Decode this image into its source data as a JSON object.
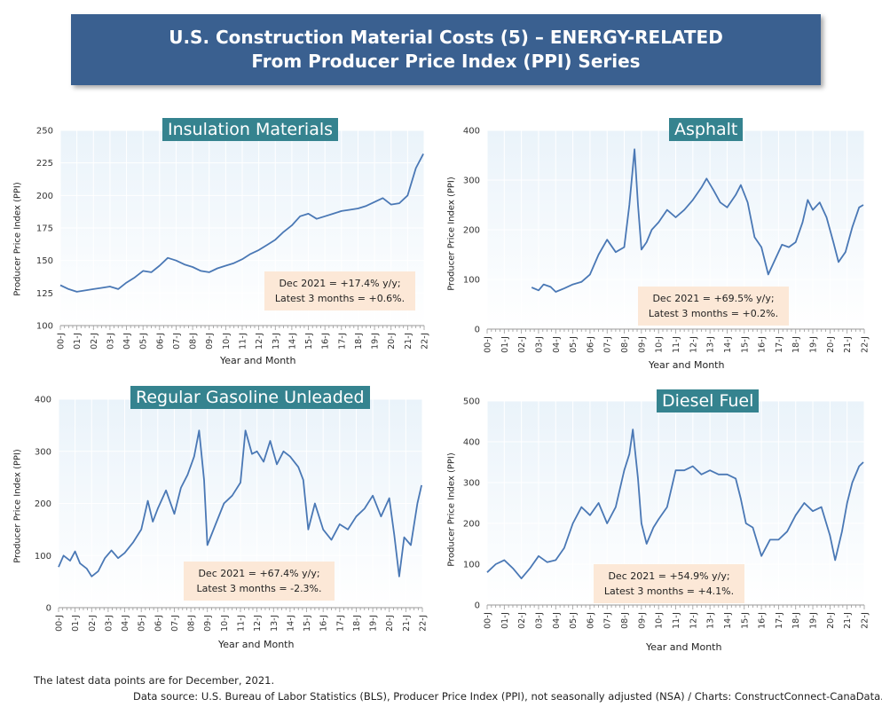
{
  "header": {
    "title_line1": "U.S. Construction Material Costs (5) – ENERGY-RELATED",
    "title_line2": "From Producer Price Index (PPI) Series"
  },
  "footer": {
    "note": "The latest data points are for December, 2021.",
    "source": "Data source: U.S. Bureau of Labor Statistics (BLS), Producer Price Index (PPI), not seasonally adjusted (NSA) / Charts: ConstructConnect-CanaData."
  },
  "colors": {
    "line": "#4a78b5",
    "plot_bg": "#eaf3fa",
    "title_bg": "#35838f",
    "header_bg": "#3a6090",
    "annotation_bg": "#fce8d7"
  },
  "chart_data": [
    {
      "type": "line",
      "title": "Insulation Materials",
      "ylabel": "Producer Price Index (PPI)",
      "xlabel": "Year and Month",
      "ylim": [
        100,
        250
      ],
      "yticks": [
        100,
        125,
        150,
        175,
        200,
        225,
        250
      ],
      "xticks": [
        "00-J",
        "01-J",
        "02-J",
        "03-J",
        "04-J",
        "05-J",
        "06-J",
        "07-J",
        "08-J",
        "09-J",
        "10-J",
        "11-J",
        "12-J",
        "13-J",
        "14-J",
        "15-J",
        "16-J",
        "17-J",
        "18-J",
        "19-J",
        "20-J",
        "21-J",
        "22-J"
      ],
      "annotation": [
        "Dec 2021 = +17.4% y/y;",
        "Latest 3 months = +0.6%."
      ],
      "series": [
        {
          "x": [
            2000.0,
            2000.5,
            2001.0,
            2001.5,
            2002.0,
            2002.5,
            2003.0,
            2003.5,
            2004.0,
            2004.5,
            2005.0,
            2005.5,
            2006.0,
            2006.5,
            2007.0,
            2007.5,
            2008.0,
            2008.5,
            2009.0,
            2009.5,
            2010.0,
            2010.5,
            2011.0,
            2011.5,
            2012.0,
            2012.5,
            2013.0,
            2013.5,
            2014.0,
            2014.5,
            2015.0,
            2015.5,
            2016.0,
            2016.5,
            2017.0,
            2017.5,
            2018.0,
            2018.5,
            2019.0,
            2019.5,
            2020.0,
            2020.5,
            2021.0,
            2021.5,
            2021.95
          ],
          "y": [
            131,
            128,
            126,
            127,
            128,
            129,
            130,
            128,
            133,
            137,
            142,
            141,
            146,
            152,
            150,
            147,
            145,
            142,
            141,
            144,
            146,
            148,
            151,
            155,
            158,
            162,
            166,
            172,
            177,
            184,
            186,
            182,
            184,
            186,
            188,
            189,
            190,
            192,
            195,
            198,
            193,
            194,
            200,
            221,
            232
          ]
        }
      ]
    },
    {
      "type": "line",
      "title": "Asphalt",
      "ylabel": "Producer Price Index (PPI)",
      "xlabel": "Year and Month",
      "ylim": [
        0,
        400
      ],
      "yticks": [
        0,
        100,
        200,
        300,
        400
      ],
      "xticks": [
        "00-J",
        "01-J",
        "02-J",
        "03-J",
        "04-J",
        "05-J",
        "06-J",
        "07-J",
        "08-J",
        "09-J",
        "10-J",
        "11-J",
        "12-J",
        "13-J",
        "14-J",
        "15-J",
        "16-J",
        "17-J",
        "18-J",
        "19-J",
        "20-J",
        "21-J",
        "22-J"
      ],
      "annotation": [
        "Dec 2021 = +69.5% y/y;",
        "Latest 3 months = +0.2%."
      ],
      "series": [
        {
          "x": [
            2002.6,
            2003.0,
            2003.3,
            2003.7,
            2004.0,
            2004.5,
            2005.0,
            2005.5,
            2006.0,
            2006.5,
            2007.0,
            2007.5,
            2008.0,
            2008.3,
            2008.6,
            2008.8,
            2009.0,
            2009.3,
            2009.6,
            2010.0,
            2010.5,
            2011.0,
            2011.5,
            2012.0,
            2012.5,
            2012.8,
            2013.2,
            2013.6,
            2014.0,
            2014.5,
            2014.8,
            2015.2,
            2015.6,
            2016.0,
            2016.4,
            2016.8,
            2017.2,
            2017.6,
            2018.0,
            2018.4,
            2018.7,
            2019.0,
            2019.4,
            2019.8,
            2020.2,
            2020.5,
            2020.9,
            2021.3,
            2021.7,
            2021.95
          ],
          "y": [
            84,
            78,
            90,
            85,
            75,
            82,
            90,
            95,
            110,
            150,
            180,
            155,
            165,
            250,
            362,
            250,
            160,
            175,
            200,
            215,
            240,
            225,
            240,
            260,
            285,
            303,
            280,
            255,
            245,
            270,
            290,
            255,
            185,
            165,
            110,
            140,
            170,
            165,
            175,
            215,
            260,
            240,
            255,
            225,
            175,
            135,
            155,
            205,
            245,
            250
          ]
        }
      ]
    },
    {
      "type": "line",
      "title": "Regular Gasoline Unleaded",
      "ylabel": "Producer Price Index (PPI)",
      "xlabel": "Year and Month",
      "ylim": [
        0,
        400
      ],
      "yticks": [
        0,
        100,
        200,
        300,
        400
      ],
      "xticks": [
        "00-J",
        "01-J",
        "02-J",
        "03-J",
        "04-J",
        "05-J",
        "06-J",
        "07-J",
        "08-J",
        "09-J",
        "10-J",
        "11-J",
        "12-J",
        "13-J",
        "14-J",
        "15-J",
        "16-J",
        "17-J",
        "18-J",
        "19-J",
        "20-J",
        "21-J",
        "22-J"
      ],
      "annotation": [
        "Dec 2021 = +67.4% y/y;",
        "Latest 3 months = -2.3%."
      ],
      "series": [
        {
          "x": [
            2000.0,
            2000.3,
            2000.7,
            2001.0,
            2001.3,
            2001.7,
            2002.0,
            2002.4,
            2002.8,
            2003.2,
            2003.6,
            2004.0,
            2004.5,
            2005.0,
            2005.4,
            2005.7,
            2006.0,
            2006.5,
            2007.0,
            2007.4,
            2007.8,
            2008.2,
            2008.5,
            2008.8,
            2009.0,
            2009.5,
            2010.0,
            2010.5,
            2011.0,
            2011.3,
            2011.7,
            2012.0,
            2012.4,
            2012.8,
            2013.2,
            2013.6,
            2014.0,
            2014.5,
            2014.8,
            2015.1,
            2015.5,
            2016.0,
            2016.5,
            2017.0,
            2017.5,
            2018.0,
            2018.5,
            2019.0,
            2019.5,
            2020.0,
            2020.3,
            2020.6,
            2020.9,
            2021.3,
            2021.7,
            2021.95
          ],
          "y": [
            78,
            100,
            90,
            108,
            85,
            75,
            60,
            70,
            95,
            110,
            95,
            105,
            125,
            150,
            205,
            165,
            190,
            225,
            180,
            230,
            255,
            290,
            340,
            245,
            120,
            160,
            200,
            215,
            240,
            340,
            295,
            300,
            280,
            320,
            275,
            300,
            290,
            270,
            245,
            150,
            200,
            150,
            130,
            160,
            150,
            175,
            190,
            215,
            175,
            210,
            140,
            60,
            135,
            120,
            200,
            235
          ]
        }
      ]
    },
    {
      "type": "line",
      "title": "Diesel Fuel",
      "ylabel": "Producer Price Index (PPI)",
      "xlabel": "Year and Month",
      "ylim": [
        0,
        500
      ],
      "yticks": [
        0,
        100,
        200,
        300,
        400,
        500
      ],
      "xticks": [
        "00-J",
        "01-J",
        "02-J",
        "03-J",
        "04-J",
        "05-J",
        "06-J",
        "07-J",
        "08-J",
        "09-J",
        "10-J",
        "11-J",
        "12-J",
        "13-J",
        "14-J",
        "15-J",
        "16-J",
        "17-J",
        "18-J",
        "19-J",
        "20-J",
        "21-J",
        "22-J"
      ],
      "annotation": [
        "Dec 2021 = +54.9% y/y;",
        "Latest 3 months = +4.1%."
      ],
      "series": [
        {
          "x": [
            2000.0,
            2000.5,
            2001.0,
            2001.5,
            2002.0,
            2002.5,
            2003.0,
            2003.5,
            2004.0,
            2004.5,
            2005.0,
            2005.5,
            2006.0,
            2006.5,
            2007.0,
            2007.5,
            2008.0,
            2008.3,
            2008.5,
            2008.8,
            2009.0,
            2009.3,
            2009.7,
            2010.0,
            2010.5,
            2011.0,
            2011.5,
            2012.0,
            2012.5,
            2013.0,
            2013.5,
            2014.0,
            2014.5,
            2014.8,
            2015.1,
            2015.5,
            2016.0,
            2016.5,
            2017.0,
            2017.5,
            2018.0,
            2018.5,
            2019.0,
            2019.5,
            2020.0,
            2020.3,
            2020.7,
            2021.0,
            2021.3,
            2021.7,
            2021.95
          ],
          "y": [
            80,
            100,
            110,
            90,
            65,
            90,
            120,
            105,
            110,
            140,
            200,
            240,
            220,
            250,
            200,
            240,
            330,
            370,
            430,
            310,
            200,
            150,
            190,
            210,
            240,
            330,
            330,
            340,
            320,
            330,
            320,
            320,
            310,
            260,
            200,
            190,
            120,
            160,
            160,
            180,
            220,
            250,
            230,
            240,
            170,
            110,
            180,
            250,
            300,
            340,
            350
          ]
        }
      ]
    }
  ]
}
